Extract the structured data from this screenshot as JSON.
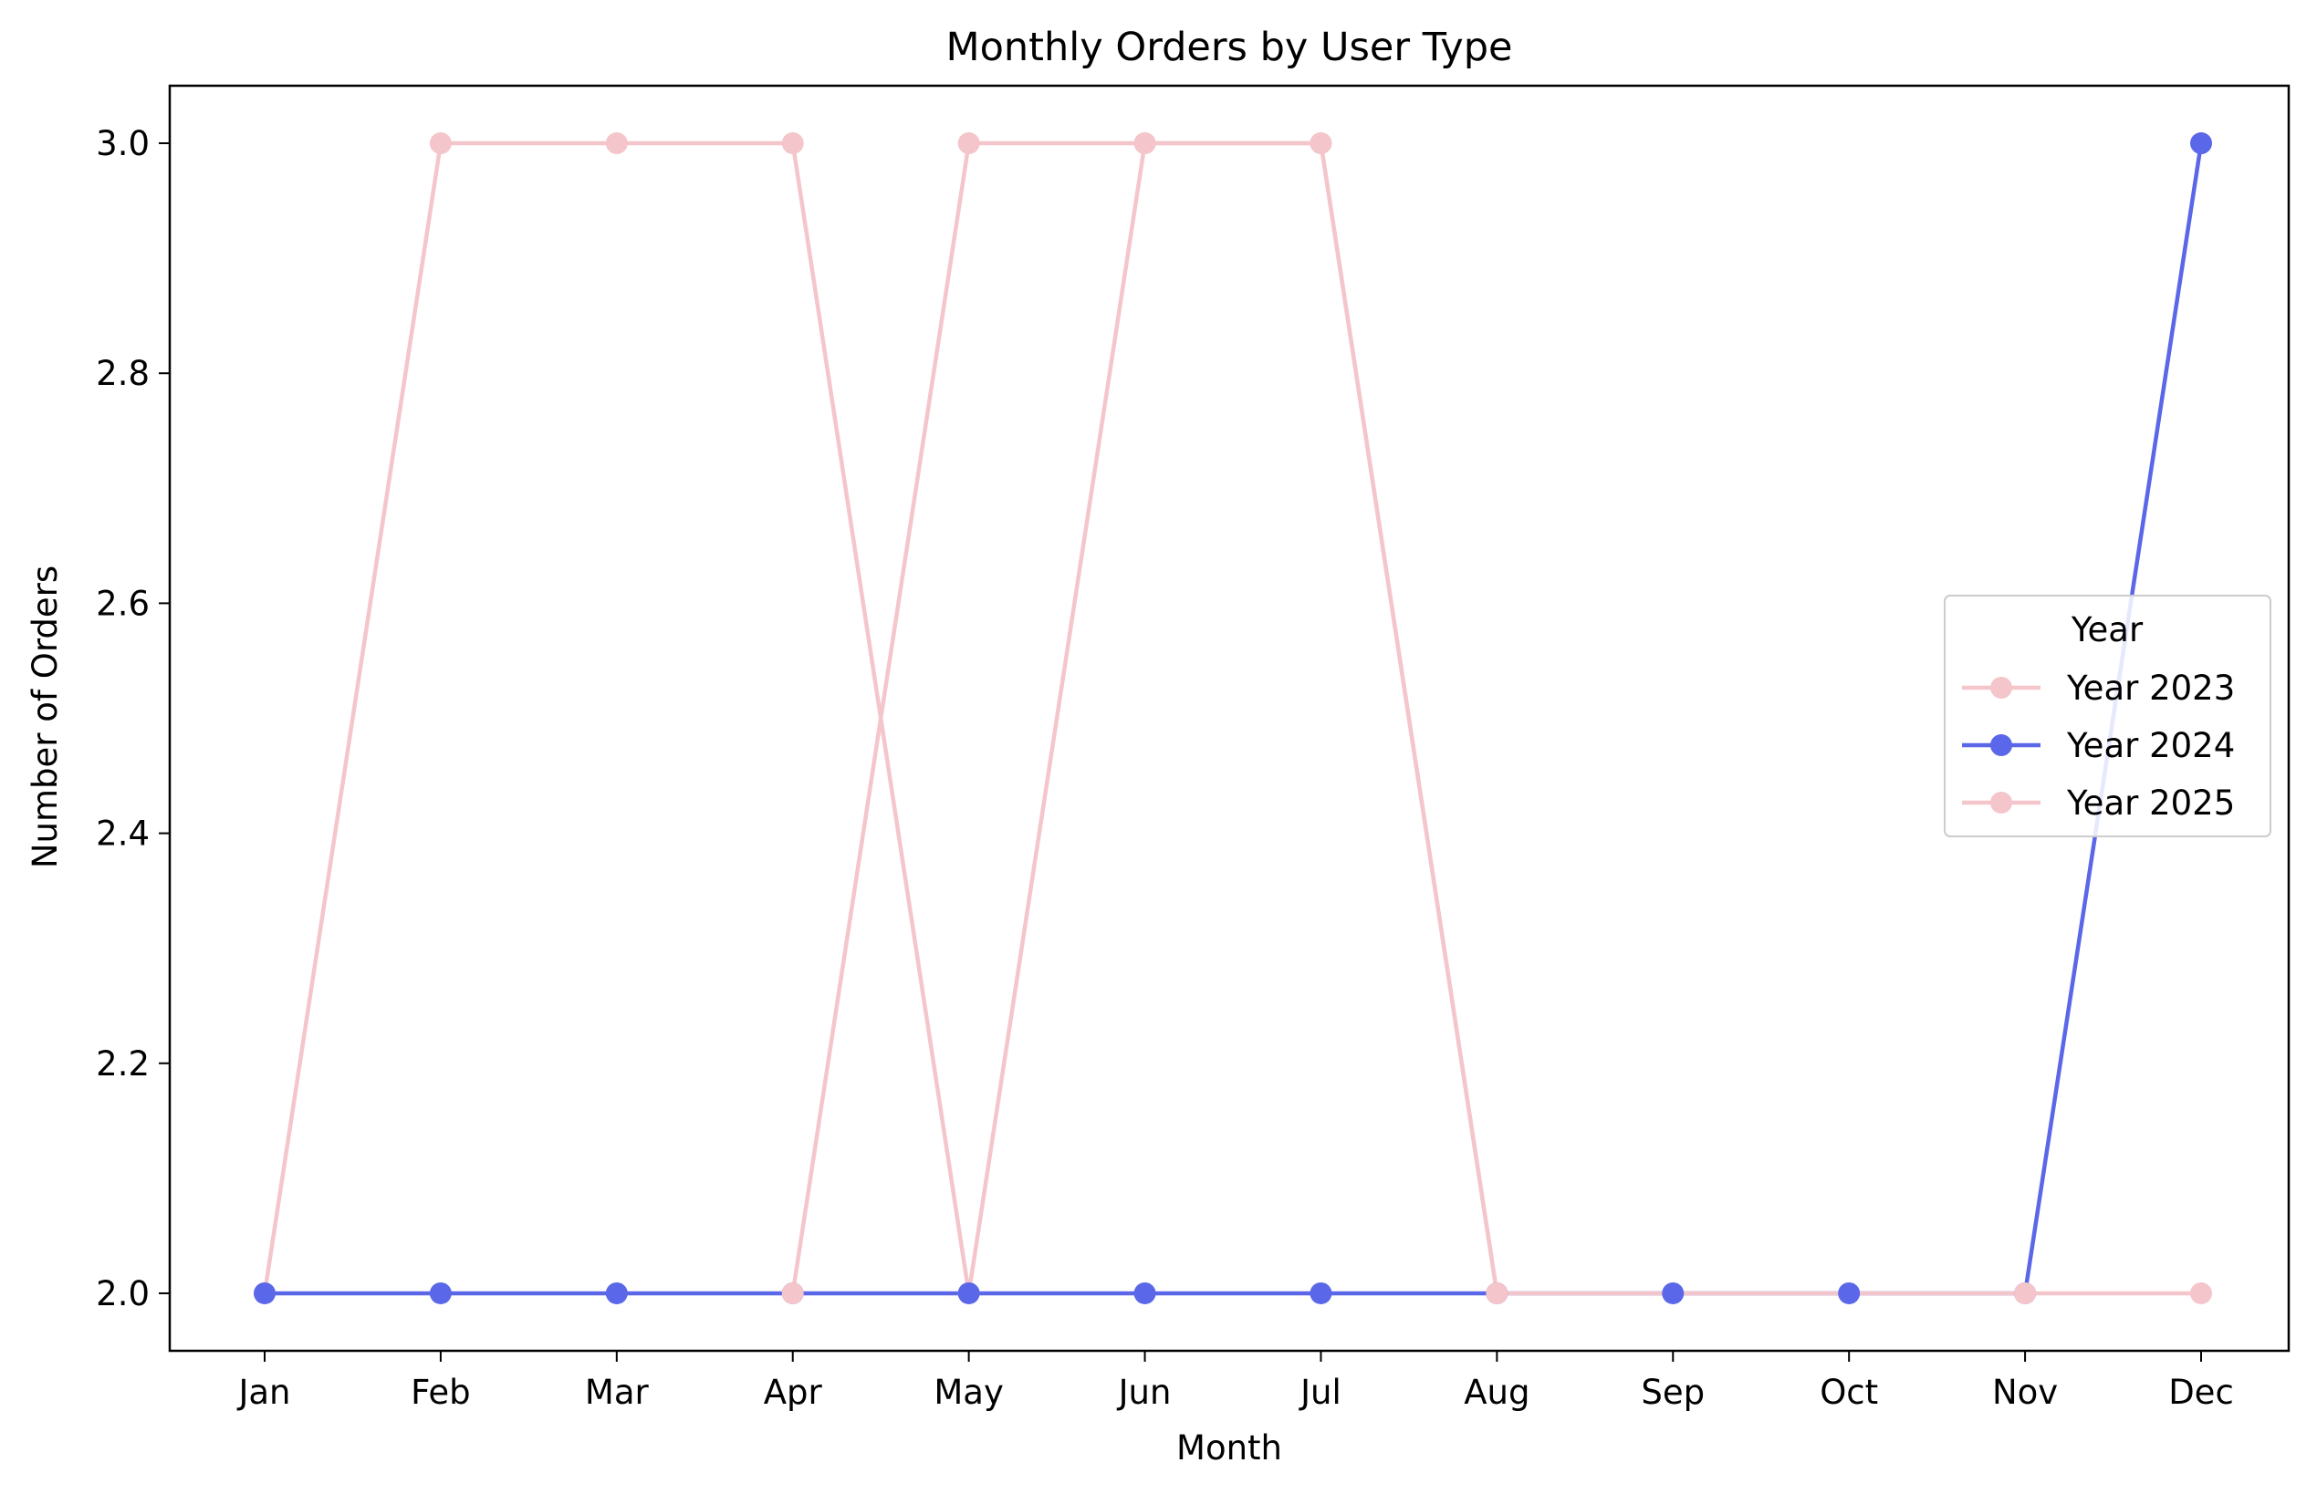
{
  "chart_data": {
    "type": "line",
    "title": "Monthly Orders by User Type",
    "xlabel": "Month",
    "ylabel": "Number of Orders",
    "categories": [
      "Jan",
      "Feb",
      "Mar",
      "Apr",
      "May",
      "Jun",
      "Jul",
      "Aug",
      "Sep",
      "Oct",
      "Nov",
      "Dec"
    ],
    "ylim": [
      1.95,
      3.05
    ],
    "yticks": [
      2.0,
      2.2,
      2.4,
      2.6,
      2.8,
      3.0
    ],
    "ytick_labels": [
      "2.0",
      "2.2",
      "2.4",
      "2.6",
      "2.8",
      "3.0"
    ],
    "grid": false,
    "legend": {
      "title": "Year",
      "placement": "center-right"
    },
    "series": [
      {
        "name": "Year 2023",
        "color": "#f4c6cb",
        "values": [
          2,
          3,
          3,
          3,
          2,
          3,
          3,
          2,
          null,
          null,
          null,
          null
        ]
      },
      {
        "name": "Year 2024",
        "color": "#5a67e8",
        "values": [
          2,
          2,
          2,
          2,
          2,
          2,
          2,
          2,
          2,
          2,
          2,
          3
        ]
      },
      {
        "name": "Year 2025",
        "color": "#f4c6cb",
        "values": [
          null,
          null,
          null,
          2,
          3,
          3,
          3,
          2,
          null,
          null,
          2,
          2
        ]
      }
    ]
  }
}
